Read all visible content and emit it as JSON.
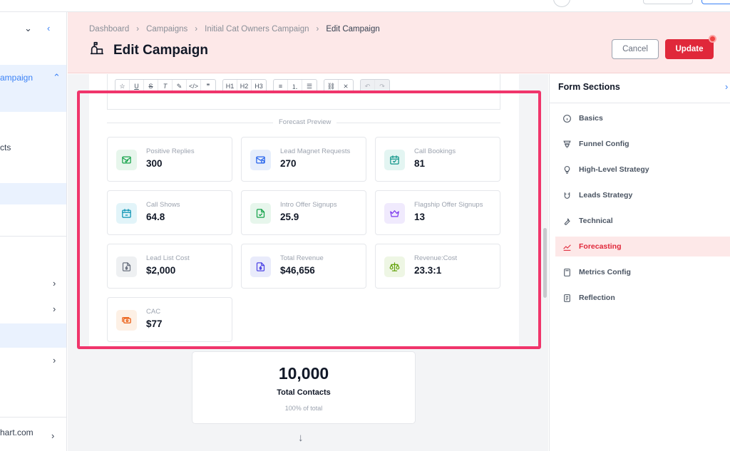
{
  "header": {
    "breadcrumbs": [
      "Dashboard",
      "Campaigns",
      "Initial Cat Owners Campaign",
      "Edit Campaign"
    ],
    "title": "Edit Campaign",
    "cancel_label": "Cancel",
    "update_label": "Update"
  },
  "left_sidebar": {
    "items": [
      {
        "label": "ampaign"
      },
      {
        "label": "cts"
      },
      {
        "label": "hart.com"
      }
    ]
  },
  "forecast": {
    "section_label": "Forecast Preview",
    "stats": [
      {
        "label": "Positive Replies",
        "value": "300",
        "icon": "message-check-icon",
        "color": "#16a34a"
      },
      {
        "label": "Lead Magnet Requests",
        "value": "270",
        "icon": "mail-request-icon",
        "color": "#2563eb"
      },
      {
        "label": "Call Bookings",
        "value": "81",
        "icon": "calendar-check-icon",
        "color": "#0d9488"
      },
      {
        "label": "Call Shows",
        "value": "64.8",
        "icon": "calendar-show-icon",
        "color": "#0891b2"
      },
      {
        "label": "Intro Offer Signups",
        "value": "25.9",
        "icon": "file-check-icon",
        "color": "#16a34a"
      },
      {
        "label": "Flagship Offer Signups",
        "value": "13",
        "icon": "crown-icon",
        "color": "#7c3aed"
      },
      {
        "label": "Lead List Cost",
        "value": "$2,000",
        "icon": "file-dollar-icon",
        "color": "#6b7280"
      },
      {
        "label": "Total Revenue",
        "value": "$46,656",
        "icon": "file-dollar-icon",
        "color": "#4f46e5"
      },
      {
        "label": "Revenue:Cost",
        "value": "23.3:1",
        "icon": "scale-icon",
        "color": "#65a30d"
      },
      {
        "label": "CAC",
        "value": "$77",
        "icon": "cash-icon",
        "color": "#ea580c"
      }
    ]
  },
  "funnel": {
    "total_value": "10,000",
    "total_label": "Total Contacts",
    "total_pct": "100% of total"
  },
  "form_sections": {
    "title": "Form Sections",
    "items": [
      {
        "label": "Basics",
        "icon": "info-icon",
        "active": false
      },
      {
        "label": "Funnel Config",
        "icon": "funnel-icon",
        "active": false
      },
      {
        "label": "High-Level Strategy",
        "icon": "bulb-icon",
        "active": false
      },
      {
        "label": "Leads Strategy",
        "icon": "magnet-icon",
        "active": false
      },
      {
        "label": "Technical",
        "icon": "tool-icon",
        "active": false
      },
      {
        "label": "Forecasting",
        "icon": "trend-icon",
        "active": true
      },
      {
        "label": "Metrics Config",
        "icon": "calculator-icon",
        "active": false
      },
      {
        "label": "Reflection",
        "icon": "notes-icon",
        "active": false
      }
    ]
  },
  "colors": {
    "accent": "#e0283a",
    "highlight": "#f0356b",
    "header_bg": "#fde8e8"
  }
}
